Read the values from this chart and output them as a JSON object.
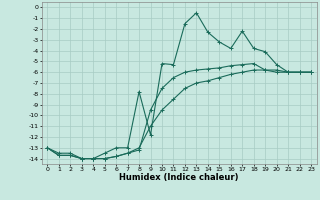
{
  "title": "",
  "xlabel": "Humidex (Indice chaleur)",
  "ylabel": "",
  "background_color": "#c8e8e0",
  "grid_color": "#a8ccc4",
  "line_color": "#1a6b5a",
  "xlim": [
    -0.5,
    23.5
  ],
  "ylim": [
    -14.5,
    0.5
  ],
  "xticks": [
    0,
    1,
    2,
    3,
    4,
    5,
    6,
    7,
    8,
    9,
    10,
    11,
    12,
    13,
    14,
    15,
    16,
    17,
    18,
    19,
    20,
    21,
    22,
    23
  ],
  "yticks": [
    0,
    -1,
    -2,
    -3,
    -4,
    -5,
    -6,
    -7,
    -8,
    -9,
    -10,
    -11,
    -12,
    -13,
    -14
  ],
  "line1_x": [
    0,
    1,
    2,
    3,
    4,
    5,
    6,
    7,
    8,
    9,
    10,
    11,
    12,
    13,
    14,
    15,
    16,
    17,
    18,
    19,
    20,
    21,
    22,
    23
  ],
  "line1_y": [
    -13,
    -13.5,
    -13.5,
    -14,
    -14,
    -13.5,
    -13,
    -13,
    -7.8,
    -11.8,
    -5.2,
    -5.3,
    -1.5,
    -0.5,
    -2.3,
    -3.2,
    -3.8,
    -2.2,
    -3.8,
    -4.1,
    -5.3,
    -6.0,
    -6.0,
    -6.0
  ],
  "line2_x": [
    0,
    1,
    2,
    3,
    4,
    5,
    6,
    7,
    8,
    9,
    10,
    11,
    12,
    13,
    14,
    15,
    16,
    17,
    18,
    19,
    20,
    21,
    22,
    23
  ],
  "line2_y": [
    -13,
    -13.7,
    -13.7,
    -14,
    -14,
    -14,
    -13.8,
    -13.5,
    -13.2,
    -9.5,
    -7.5,
    -6.5,
    -6.0,
    -5.8,
    -5.7,
    -5.6,
    -5.4,
    -5.3,
    -5.2,
    -5.8,
    -6.0,
    -6.0,
    -6.0,
    -6.0
  ],
  "line3_x": [
    0,
    1,
    2,
    3,
    4,
    5,
    6,
    7,
    8,
    9,
    10,
    11,
    12,
    13,
    14,
    15,
    16,
    17,
    18,
    19,
    20,
    21,
    22,
    23
  ],
  "line3_y": [
    -13,
    -13.7,
    -13.7,
    -14,
    -14,
    -14,
    -13.8,
    -13.5,
    -13.0,
    -11.0,
    -9.5,
    -8.5,
    -7.5,
    -7.0,
    -6.8,
    -6.5,
    -6.2,
    -6.0,
    -5.8,
    -5.8,
    -5.8,
    -6.0,
    -6.0,
    -6.0
  ],
  "marker": "+",
  "markersize": 3,
  "linewidth": 0.8,
  "tick_fontsize": 4.5,
  "xlabel_fontsize": 6.0
}
